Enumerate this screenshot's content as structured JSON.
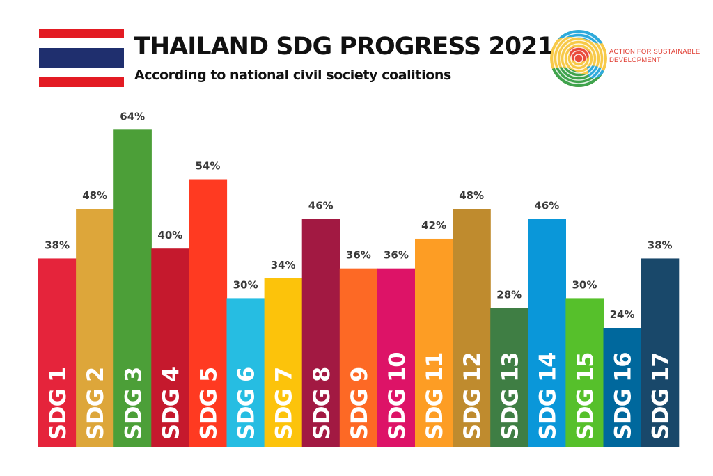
{
  "header": {
    "title": "THAILAND SDG PROGRESS 2021",
    "subtitle": "According to national civil society coalitions"
  },
  "logo": {
    "text_line1": "ACTION FOR SUSTAINABLE",
    "text_line2": "DEVELOPMENT"
  },
  "flag": {
    "colors": [
      "#e31b23",
      "#ffffff",
      "#1f2f6e",
      "#ffffff",
      "#e31b23"
    ]
  },
  "chart_data": {
    "type": "bar",
    "title": "THAILAND SDG PROGRESS 2021",
    "subtitle": "According to national civil society coalitions",
    "categories": [
      "SDG 1",
      "SDG 2",
      "SDG 3",
      "SDG 4",
      "SDG 5",
      "SDG 6",
      "SDG 7",
      "SDG 8",
      "SDG 9",
      "SDG 10",
      "SDG 11",
      "SDG 12",
      "SDG 13",
      "SDG 14",
      "SDG 15",
      "SDG 16",
      "SDG 17"
    ],
    "values": [
      38,
      48,
      64,
      40,
      54,
      30,
      34,
      46,
      36,
      36,
      42,
      48,
      28,
      46,
      30,
      24,
      38
    ],
    "value_labels": [
      "38%",
      "48%",
      "64%",
      "40%",
      "54%",
      "30%",
      "34%",
      "46%",
      "36%",
      "36%",
      "42%",
      "48%",
      "28%",
      "46%",
      "30%",
      "24%",
      "38%"
    ],
    "colors": [
      "#e5243b",
      "#dda63a",
      "#4c9f38",
      "#c5192d",
      "#ff3a21",
      "#26bde2",
      "#fcc30b",
      "#a21942",
      "#fd6925",
      "#dd1367",
      "#fd9d24",
      "#bf8b2e",
      "#3f7e44",
      "#0a97d9",
      "#56c02b",
      "#00689d",
      "#19486a"
    ],
    "xlabel": "",
    "ylabel": "",
    "ylim": [
      0,
      100
    ],
    "grid": false,
    "legend": "none"
  }
}
